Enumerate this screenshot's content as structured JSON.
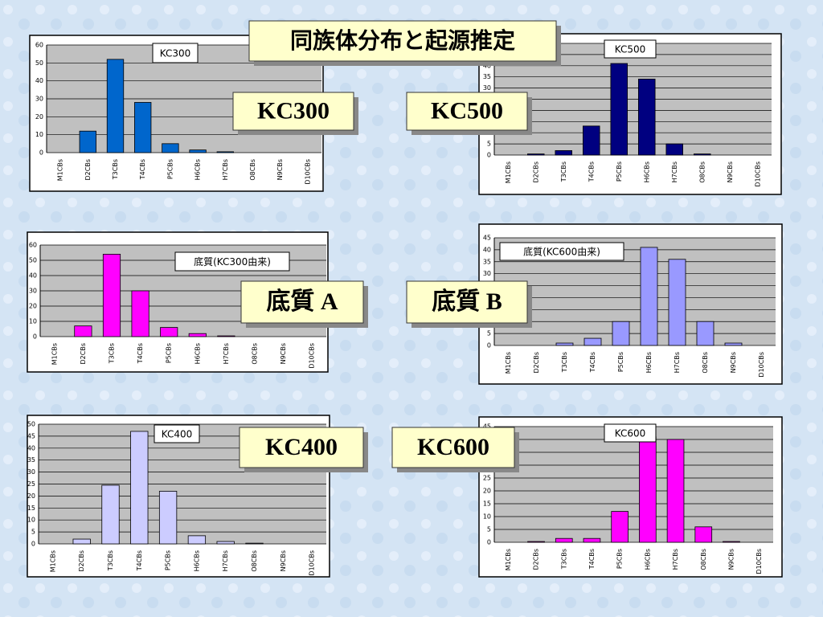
{
  "title": "同族体分布と起源推定",
  "labels": [
    "KC300",
    "KC500",
    "底質 A",
    "底質 B",
    "KC400",
    "KC600"
  ],
  "chart_data": [
    {
      "type": "bar",
      "title": "KC300",
      "categories": [
        "M1CBs",
        "D2CBs",
        "T3CBs",
        "T4CBs",
        "P5CBs",
        "H6CBs",
        "H7CBs",
        "O8CBs",
        "N9CBs",
        "D10CBs"
      ],
      "values": [
        0,
        12,
        52,
        28,
        5,
        1.5,
        0.5,
        0,
        0,
        0
      ],
      "color": "#0066cc",
      "ylim": [
        0,
        60
      ],
      "yticks": [
        0,
        10,
        20,
        30,
        40,
        50,
        60
      ],
      "grid": true
    },
    {
      "type": "bar",
      "title": "KC500",
      "categories": [
        "M1CBs",
        "D2CBs",
        "T3CBs",
        "T4CBs",
        "P5CBs",
        "H6CBs",
        "H7CBs",
        "O8CBs",
        "N9CBs",
        "D10CBs"
      ],
      "values": [
        0,
        0.5,
        2,
        13,
        41,
        34,
        5,
        0.5,
        0,
        0
      ],
      "color": "#000080",
      "ylim": [
        0,
        50
      ],
      "yticks": [
        0,
        5,
        10,
        15,
        20,
        25,
        30,
        35,
        40,
        45,
        50
      ],
      "grid": true
    },
    {
      "type": "bar",
      "title": "底質(KC300由来)",
      "categories": [
        "M1CBs",
        "D2CBs",
        "T3CBs",
        "T4CBs",
        "P5CBs",
        "H6CBs",
        "H7CBs",
        "O8CBs",
        "N9CBs",
        "D10CBs"
      ],
      "values": [
        0,
        7,
        54,
        30,
        6,
        2,
        0.5,
        0,
        0,
        0
      ],
      "color": "#ff00ff",
      "ylim": [
        0,
        60
      ],
      "yticks": [
        0,
        10,
        20,
        30,
        40,
        50,
        60
      ],
      "grid": true
    },
    {
      "type": "bar",
      "title": "底質(KC600由来)",
      "categories": [
        "M1CBs",
        "D2CBs",
        "T3CBs",
        "T4CBs",
        "P5CBs",
        "H6CBs",
        "H7CBs",
        "O8CBs",
        "N9CBs",
        "D10CBs"
      ],
      "values": [
        0,
        0,
        1,
        3,
        10,
        41,
        36,
        10,
        1,
        0
      ],
      "color": "#9999ff",
      "ylim": [
        0,
        45
      ],
      "yticks": [
        0,
        5,
        10,
        15,
        20,
        25,
        30,
        35,
        40,
        45
      ],
      "grid": true
    },
    {
      "type": "bar",
      "title": "KC400",
      "categories": [
        "M1CBs",
        "D2CBs",
        "T3CBs",
        "T4CBs",
        "P5CBs",
        "H6CBs",
        "H7CBs",
        "O8CBs",
        "N9CBs",
        "D10CBs"
      ],
      "values": [
        0,
        2,
        24.5,
        47,
        22,
        3.4,
        1,
        0.3,
        0,
        0
      ],
      "color": "#ccccff",
      "ylim": [
        0,
        50
      ],
      "yticks": [
        0,
        5,
        10,
        15,
        20,
        25,
        30,
        35,
        40,
        45,
        50
      ],
      "grid": true
    },
    {
      "type": "bar",
      "title": "KC600",
      "categories": [
        "M1CBs",
        "D2CBs",
        "T3CBs",
        "T4CBs",
        "P5CBs",
        "H6CBs",
        "H7CBs",
        "O8CBs",
        "N9CBs",
        "D10CBs"
      ],
      "values": [
        0,
        0.3,
        1.5,
        1.5,
        12,
        41,
        40,
        6,
        0.3,
        0
      ],
      "color": "#ff00ff",
      "ylim": [
        0,
        45
      ],
      "yticks": [
        0,
        5,
        10,
        15,
        20,
        25,
        30,
        35,
        40,
        45
      ],
      "grid": true
    }
  ]
}
